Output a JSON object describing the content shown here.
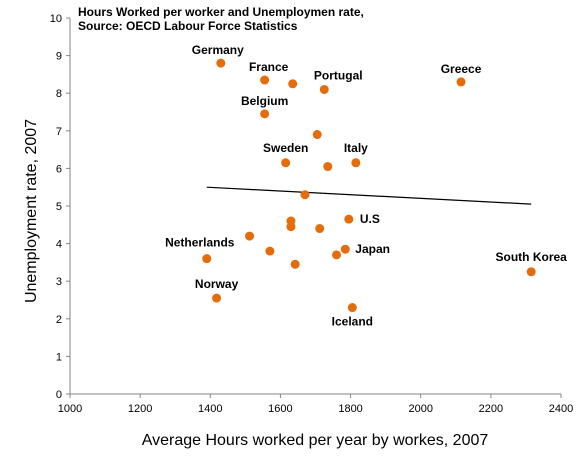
{
  "chart_data": {
    "type": "scatter",
    "title_lines": [
      "Hours Worked per worker and Unemploymen rate,",
      "Source: OECD Labour Force Statistics"
    ],
    "xlabel": "Average Hours worked per year by workes, 2007",
    "ylabel": "Unemployment rate, 2007",
    "xlim": [
      1000,
      2400
    ],
    "ylim": [
      0,
      10
    ],
    "xticks": [
      "1000",
      "1200",
      "1400",
      "1600",
      "1800",
      "2000",
      "2200",
      "2400"
    ],
    "yticks": [
      "0",
      "1",
      "2",
      "3",
      "4",
      "5",
      "6",
      "7",
      "8",
      "9",
      "10"
    ],
    "grid": false,
    "legend": "none",
    "marker_color": "#e46c0a",
    "trendline_color": "#000000",
    "points": [
      {
        "x": 1430,
        "y": 8.8,
        "label": "Germany"
      },
      {
        "x": 1555,
        "y": 8.35,
        "label": "France"
      },
      {
        "x": 1635,
        "y": 8.25,
        "label": ""
      },
      {
        "x": 1725,
        "y": 8.1,
        "label": "Portugal"
      },
      {
        "x": 2115,
        "y": 8.3,
        "label": "Greece"
      },
      {
        "x": 1555,
        "y": 7.45,
        "label": "Belgium"
      },
      {
        "x": 1705,
        "y": 6.9,
        "label": ""
      },
      {
        "x": 1615,
        "y": 6.15,
        "label": "Sweden"
      },
      {
        "x": 1735,
        "y": 6.05,
        "label": ""
      },
      {
        "x": 1815,
        "y": 6.15,
        "label": "Italy"
      },
      {
        "x": 1670,
        "y": 5.3,
        "label": ""
      },
      {
        "x": 1795,
        "y": 4.65,
        "label": "U.S"
      },
      {
        "x": 1630,
        "y": 4.6,
        "label": ""
      },
      {
        "x": 1630,
        "y": 4.45,
        "label": ""
      },
      {
        "x": 1712,
        "y": 4.4,
        "label": ""
      },
      {
        "x": 1512,
        "y": 4.2,
        "label": ""
      },
      {
        "x": 1570,
        "y": 3.8,
        "label": ""
      },
      {
        "x": 1785,
        "y": 3.85,
        "label": "Japan"
      },
      {
        "x": 1760,
        "y": 3.7,
        "label": ""
      },
      {
        "x": 1390,
        "y": 3.6,
        "label": "Netherlands"
      },
      {
        "x": 1642,
        "y": 3.45,
        "label": ""
      },
      {
        "x": 2315,
        "y": 3.25,
        "label": "South Korea"
      },
      {
        "x": 1418,
        "y": 2.55,
        "label": "Norway"
      },
      {
        "x": 1805,
        "y": 2.3,
        "label": "Iceland"
      }
    ],
    "trendline": {
      "x": [
        1390,
        2315
      ],
      "y": [
        5.5,
        5.05
      ]
    }
  }
}
